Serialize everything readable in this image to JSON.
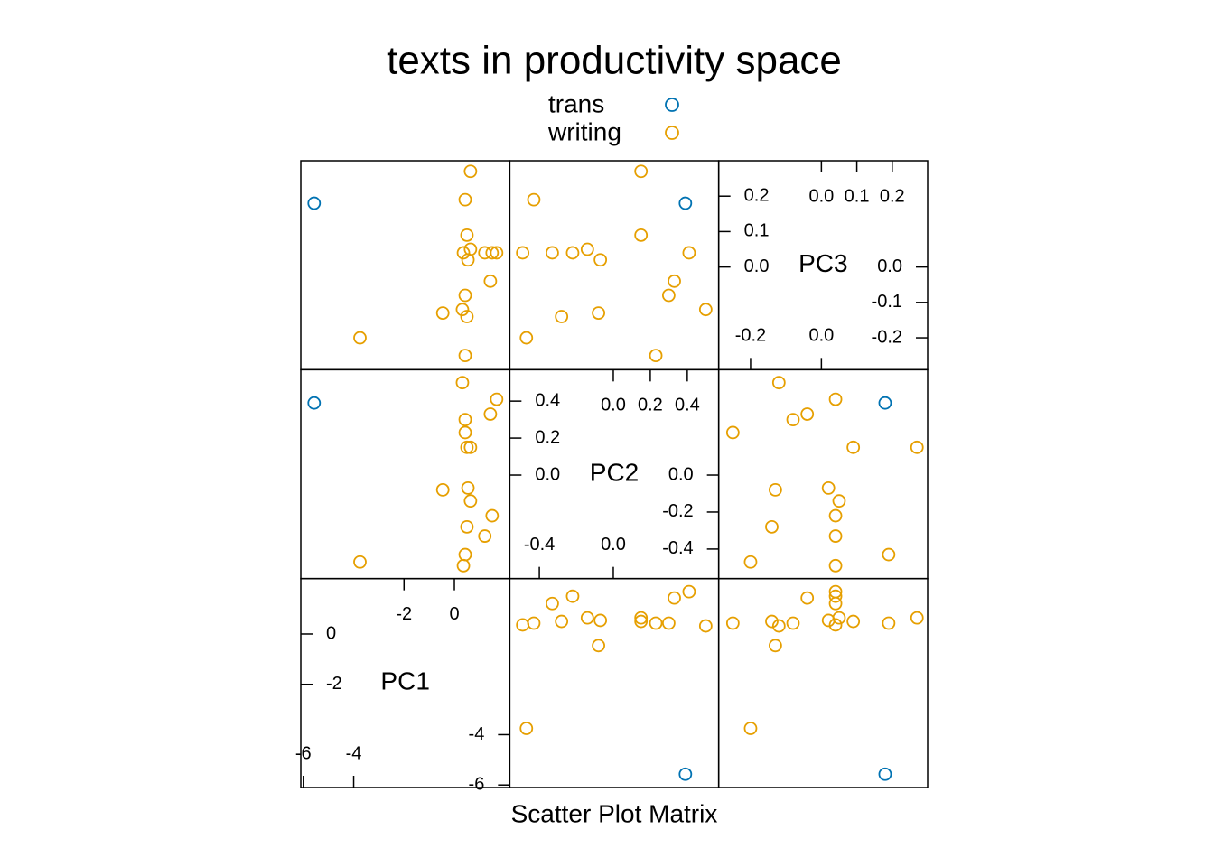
{
  "chart_data": {
    "type": "scatter_matrix",
    "title": "texts in productivity space",
    "xlabel": "Scatter Plot Matrix",
    "variables": [
      {
        "name": "PC1",
        "lim": [
          -6.1,
          2.2
        ],
        "left_ticks": [
          0,
          -2
        ],
        "right_ticks": [
          -4,
          -6
        ],
        "bottom_ticks": [
          -6,
          -4
        ],
        "top_ticks": [
          -2,
          0
        ]
      },
      {
        "name": "PC2",
        "lim": [
          -0.56,
          0.57
        ],
        "left_ticks": [
          0.4,
          0.2,
          {
            "value": 0,
            "label": "0.0"
          }
        ],
        "right_ticks": [
          {
            "value": 0,
            "label": "0.0"
          },
          -0.2,
          -0.4
        ],
        "bottom_ticks": [
          -0.4,
          {
            "value": 0,
            "label": "0.0"
          }
        ],
        "top_ticks": [
          {
            "value": 0,
            "label": "0.0"
          },
          0.2,
          0.4
        ]
      },
      {
        "name": "PC3",
        "lim": [
          -0.29,
          0.3
        ],
        "left_ticks": [
          0.2,
          0.1,
          {
            "value": 0,
            "label": "0.0"
          }
        ],
        "right_ticks": [
          {
            "value": 0,
            "label": "0.0"
          },
          -0.1,
          -0.2
        ],
        "bottom_ticks": [
          -0.2,
          {
            "value": 0,
            "label": "0.0"
          }
        ],
        "top_ticks": [
          {
            "value": 0,
            "label": "0.0"
          },
          0.1,
          0.2
        ]
      }
    ],
    "series": [
      {
        "name": "trans",
        "color": "#0072B2",
        "PC1": [
          -5.57
        ],
        "PC2": [
          0.39
        ],
        "PC3": [
          0.18
        ]
      },
      {
        "name": "writing",
        "color": "#E69F00",
        "PC1": [
          0.64,
          0.43,
          0.5,
          0.36,
          1.21,
          1.5,
          0.64,
          0.54,
          1.68,
          1.43,
          0.43,
          0.32,
          0.5,
          -0.46,
          -3.75,
          0.43
        ],
        "PC2": [
          0.15,
          -0.43,
          0.15,
          -0.49,
          -0.33,
          -0.22,
          -0.14,
          -0.07,
          0.41,
          0.33,
          0.3,
          0.5,
          -0.28,
          -0.08,
          -0.47,
          0.23
        ],
        "PC3": [
          0.27,
          0.19,
          0.09,
          0.04,
          0.04,
          0.04,
          0.05,
          0.02,
          0.04,
          -0.04,
          -0.08,
          -0.12,
          -0.14,
          -0.13,
          -0.2,
          -0.25
        ]
      }
    ]
  }
}
